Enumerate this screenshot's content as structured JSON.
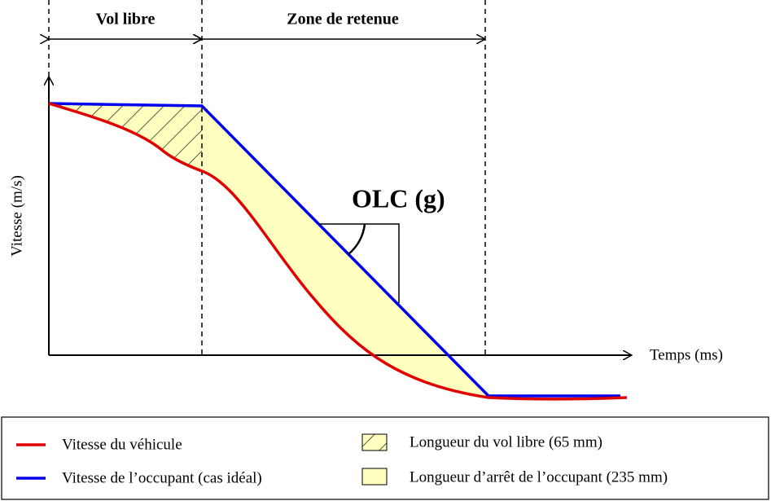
{
  "header": {
    "zone_free": "Vol libre",
    "zone_restraint": "Zone de retenue"
  },
  "axes": {
    "y_label": "Vitesse (m/s)",
    "x_label": "Temps (ms)"
  },
  "annotation": "OLC (g)",
  "legend": {
    "vehicle": "Vitesse du véhicule",
    "occupant": "Vitesse de l’occupant (cas idéal)",
    "free_flight": "Longueur du vol libre (65 mm)",
    "stopping": "Longueur d’arrêt de l’occupant (235 mm)"
  }
}
